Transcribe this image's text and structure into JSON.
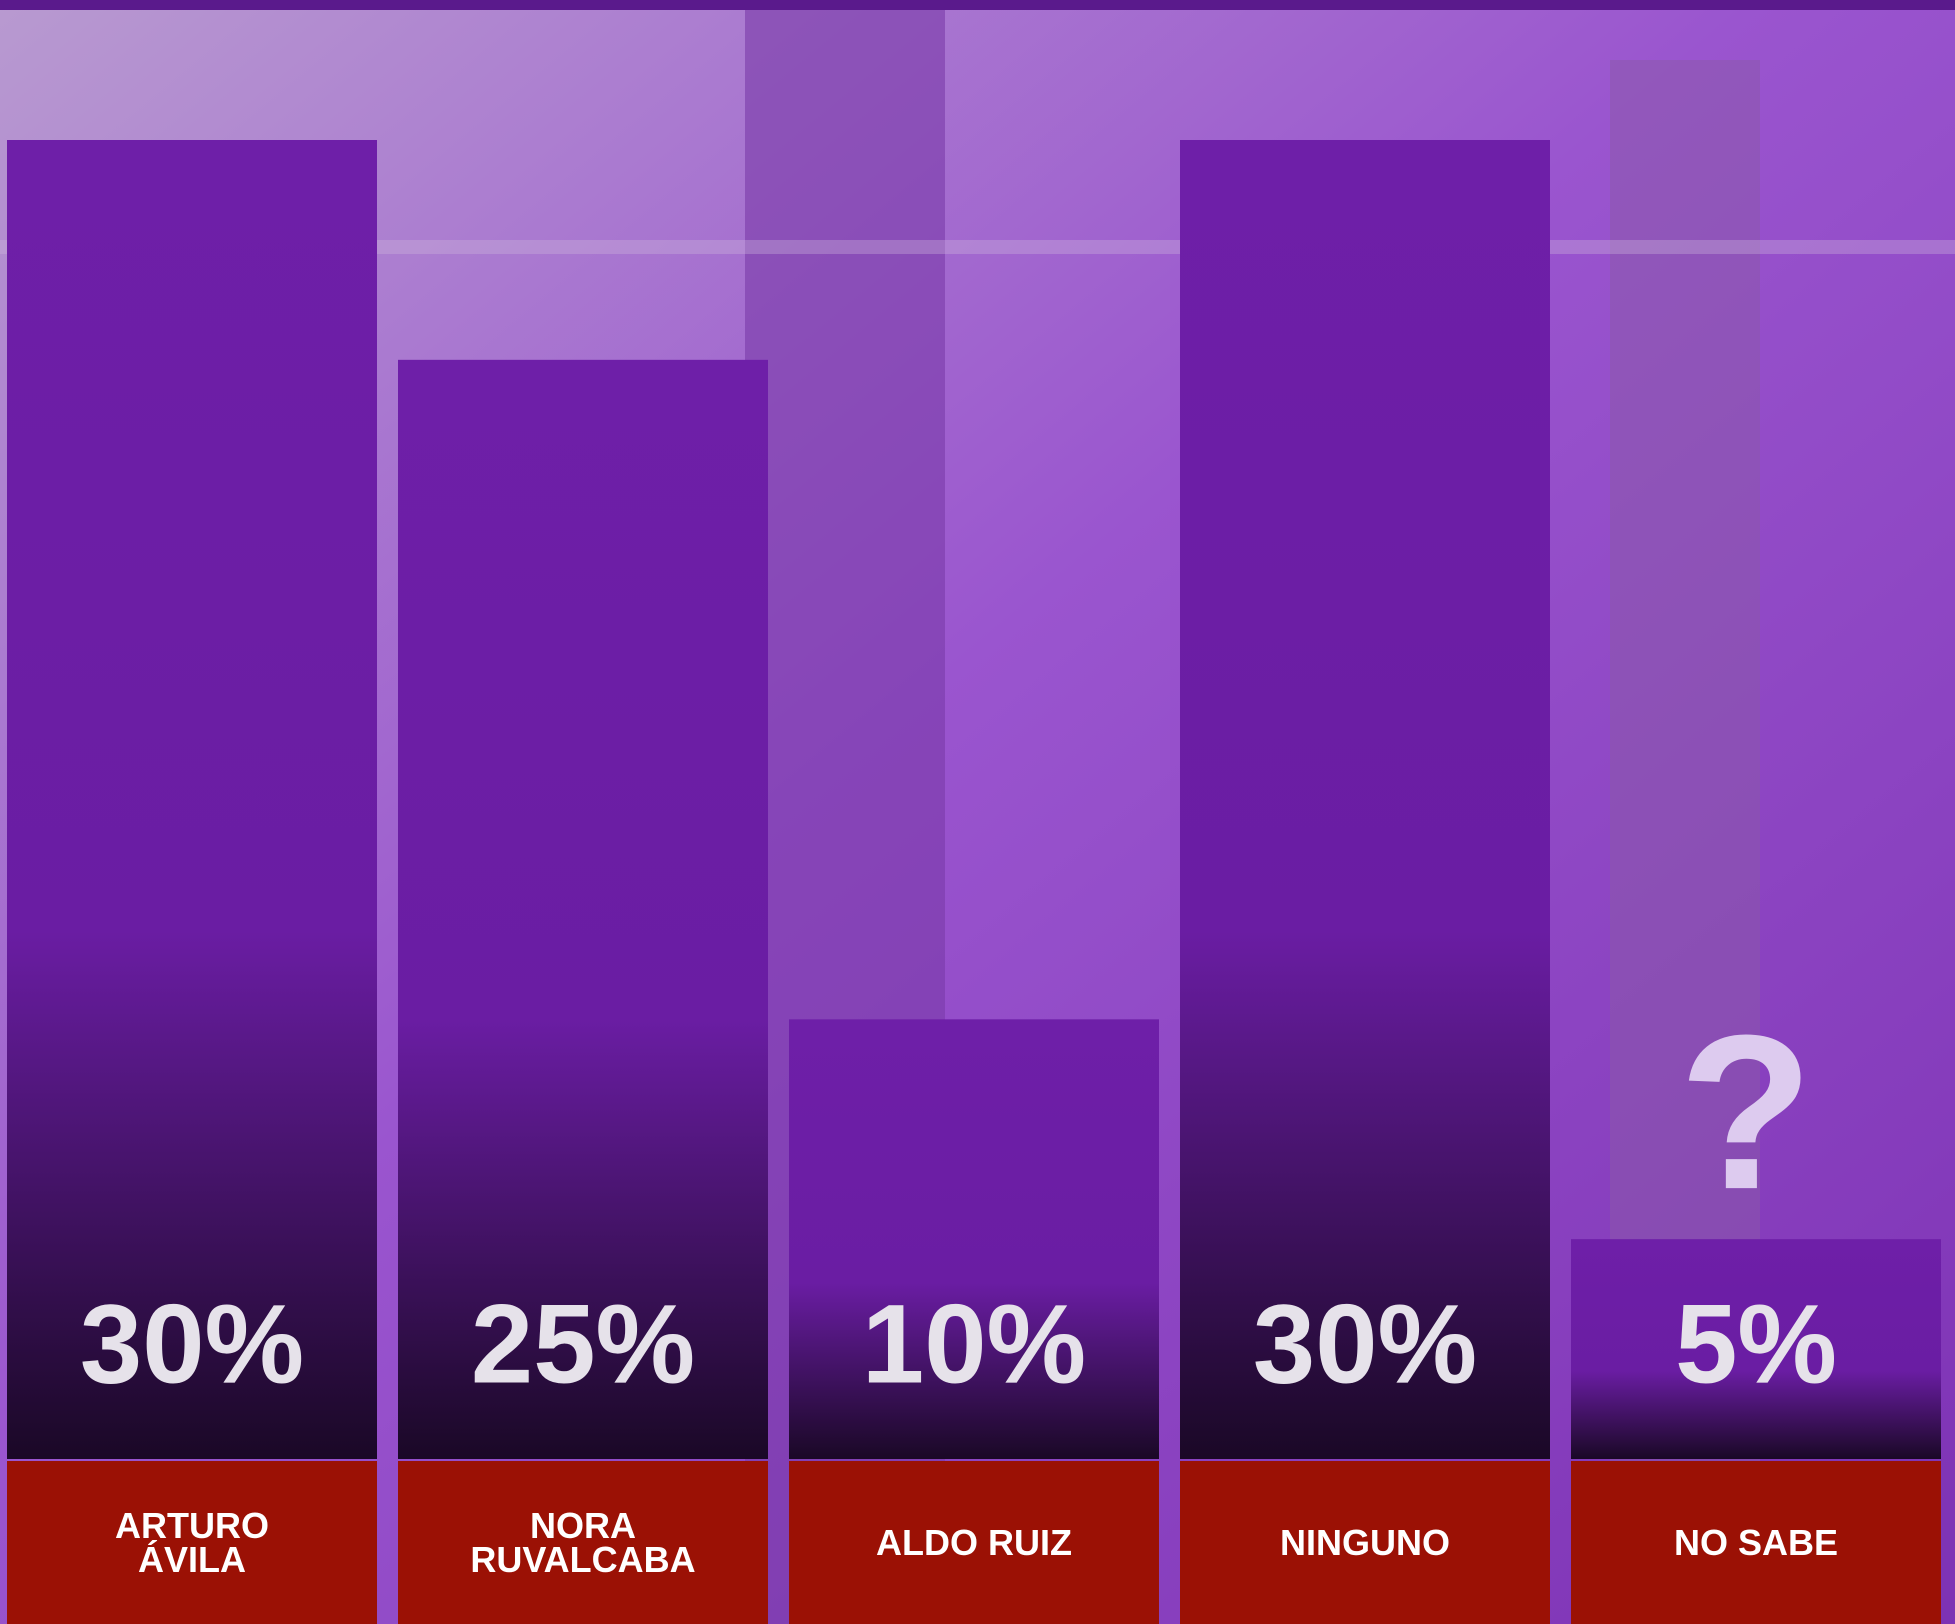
{
  "chart_data": {
    "type": "bar",
    "categories": [
      "ARTURO ÁVILA",
      "NORA RUVALCABA",
      "ALDO RUIZ",
      "NINGUNO",
      "NO SABE"
    ],
    "values": [
      30,
      25,
      10,
      30,
      5
    ],
    "value_labels": [
      "30%",
      "25%",
      "10%",
      "30%",
      "5%"
    ],
    "color": "#6e1fa8",
    "label_color": "#9b1105",
    "ylim": [
      0,
      30
    ],
    "annotation": "?"
  }
}
